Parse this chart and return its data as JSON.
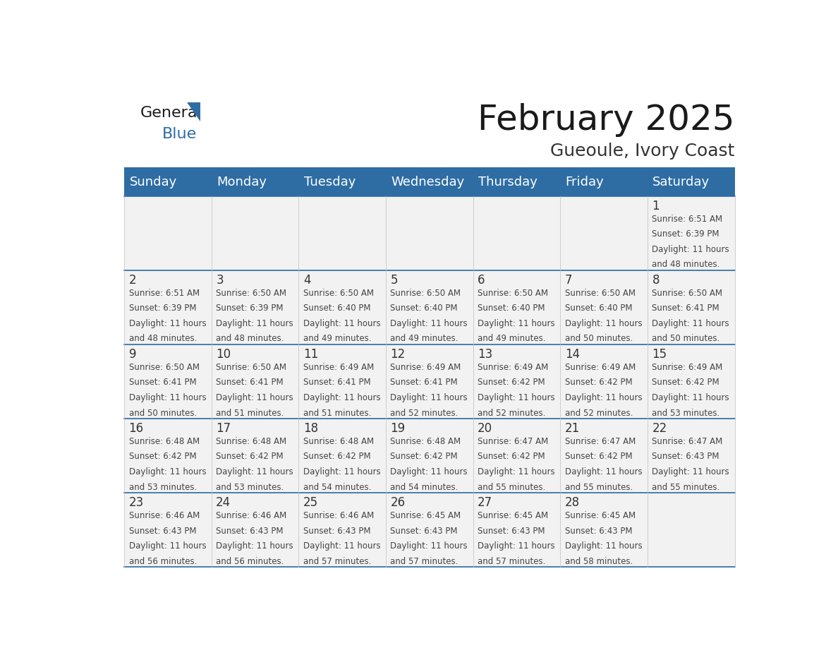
{
  "title": "February 2025",
  "subtitle": "Gueoule, Ivory Coast",
  "header_bg": "#2E6DA4",
  "header_text_color": "#FFFFFF",
  "cell_bg": "#F2F2F2",
  "border_color": "#2E6DA4",
  "cell_border_color": "#CCCCCC",
  "text_color": "#333333",
  "cell_text_color": "#444444",
  "days_of_week": [
    "Sunday",
    "Monday",
    "Tuesday",
    "Wednesday",
    "Thursday",
    "Friday",
    "Saturday"
  ],
  "weeks": [
    [
      null,
      null,
      null,
      null,
      null,
      null,
      1
    ],
    [
      2,
      3,
      4,
      5,
      6,
      7,
      8
    ],
    [
      9,
      10,
      11,
      12,
      13,
      14,
      15
    ],
    [
      16,
      17,
      18,
      19,
      20,
      21,
      22
    ],
    [
      23,
      24,
      25,
      26,
      27,
      28,
      null
    ]
  ],
  "cell_data": {
    "1": {
      "sunrise": "6:51 AM",
      "sunset": "6:39 PM",
      "daylight_hours": 11,
      "daylight_minutes": 48
    },
    "2": {
      "sunrise": "6:51 AM",
      "sunset": "6:39 PM",
      "daylight_hours": 11,
      "daylight_minutes": 48
    },
    "3": {
      "sunrise": "6:50 AM",
      "sunset": "6:39 PM",
      "daylight_hours": 11,
      "daylight_minutes": 48
    },
    "4": {
      "sunrise": "6:50 AM",
      "sunset": "6:40 PM",
      "daylight_hours": 11,
      "daylight_minutes": 49
    },
    "5": {
      "sunrise": "6:50 AM",
      "sunset": "6:40 PM",
      "daylight_hours": 11,
      "daylight_minutes": 49
    },
    "6": {
      "sunrise": "6:50 AM",
      "sunset": "6:40 PM",
      "daylight_hours": 11,
      "daylight_minutes": 49
    },
    "7": {
      "sunrise": "6:50 AM",
      "sunset": "6:40 PM",
      "daylight_hours": 11,
      "daylight_minutes": 50
    },
    "8": {
      "sunrise": "6:50 AM",
      "sunset": "6:41 PM",
      "daylight_hours": 11,
      "daylight_minutes": 50
    },
    "9": {
      "sunrise": "6:50 AM",
      "sunset": "6:41 PM",
      "daylight_hours": 11,
      "daylight_minutes": 50
    },
    "10": {
      "sunrise": "6:50 AM",
      "sunset": "6:41 PM",
      "daylight_hours": 11,
      "daylight_minutes": 51
    },
    "11": {
      "sunrise": "6:49 AM",
      "sunset": "6:41 PM",
      "daylight_hours": 11,
      "daylight_minutes": 51
    },
    "12": {
      "sunrise": "6:49 AM",
      "sunset": "6:41 PM",
      "daylight_hours": 11,
      "daylight_minutes": 52
    },
    "13": {
      "sunrise": "6:49 AM",
      "sunset": "6:42 PM",
      "daylight_hours": 11,
      "daylight_minutes": 52
    },
    "14": {
      "sunrise": "6:49 AM",
      "sunset": "6:42 PM",
      "daylight_hours": 11,
      "daylight_minutes": 52
    },
    "15": {
      "sunrise": "6:49 AM",
      "sunset": "6:42 PM",
      "daylight_hours": 11,
      "daylight_minutes": 53
    },
    "16": {
      "sunrise": "6:48 AM",
      "sunset": "6:42 PM",
      "daylight_hours": 11,
      "daylight_minutes": 53
    },
    "17": {
      "sunrise": "6:48 AM",
      "sunset": "6:42 PM",
      "daylight_hours": 11,
      "daylight_minutes": 53
    },
    "18": {
      "sunrise": "6:48 AM",
      "sunset": "6:42 PM",
      "daylight_hours": 11,
      "daylight_minutes": 54
    },
    "19": {
      "sunrise": "6:48 AM",
      "sunset": "6:42 PM",
      "daylight_hours": 11,
      "daylight_minutes": 54
    },
    "20": {
      "sunrise": "6:47 AM",
      "sunset": "6:42 PM",
      "daylight_hours": 11,
      "daylight_minutes": 55
    },
    "21": {
      "sunrise": "6:47 AM",
      "sunset": "6:42 PM",
      "daylight_hours": 11,
      "daylight_minutes": 55
    },
    "22": {
      "sunrise": "6:47 AM",
      "sunset": "6:43 PM",
      "daylight_hours": 11,
      "daylight_minutes": 55
    },
    "23": {
      "sunrise": "6:46 AM",
      "sunset": "6:43 PM",
      "daylight_hours": 11,
      "daylight_minutes": 56
    },
    "24": {
      "sunrise": "6:46 AM",
      "sunset": "6:43 PM",
      "daylight_hours": 11,
      "daylight_minutes": 56
    },
    "25": {
      "sunrise": "6:46 AM",
      "sunset": "6:43 PM",
      "daylight_hours": 11,
      "daylight_minutes": 57
    },
    "26": {
      "sunrise": "6:45 AM",
      "sunset": "6:43 PM",
      "daylight_hours": 11,
      "daylight_minutes": 57
    },
    "27": {
      "sunrise": "6:45 AM",
      "sunset": "6:43 PM",
      "daylight_hours": 11,
      "daylight_minutes": 57
    },
    "28": {
      "sunrise": "6:45 AM",
      "sunset": "6:43 PM",
      "daylight_hours": 11,
      "daylight_minutes": 58
    }
  },
  "title_fontsize": 36,
  "subtitle_fontsize": 18,
  "header_fontsize": 13,
  "day_num_fontsize": 12,
  "cell_text_fontsize": 8.5,
  "logo_general_color": "#1a1a1a",
  "logo_blue_color": "#2E6DA4",
  "logo_fontsize": 16
}
